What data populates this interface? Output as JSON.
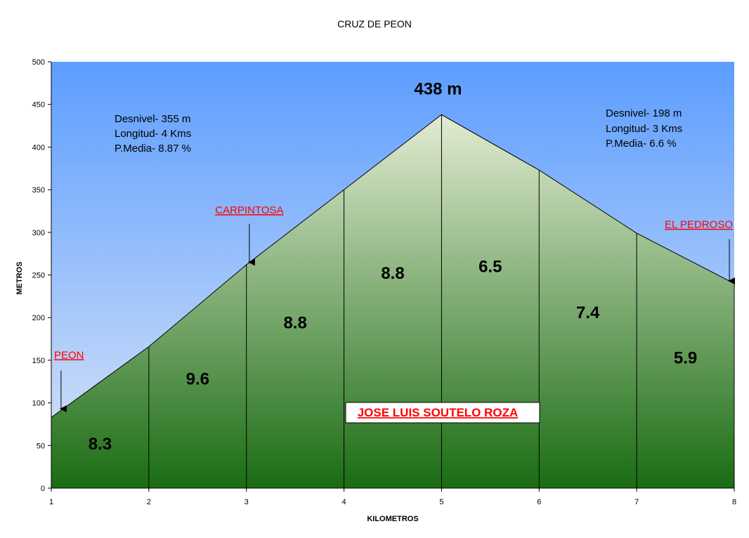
{
  "chart_data": {
    "type": "area",
    "title": "CRUZ DE PEON",
    "xlabel": "KILOMETROS",
    "ylabel": "METROS",
    "xlim": [
      1,
      8
    ],
    "ylim": [
      0,
      500
    ],
    "x_ticks": [
      1,
      2,
      3,
      4,
      5,
      6,
      7,
      8
    ],
    "y_ticks": [
      0,
      50,
      100,
      150,
      200,
      250,
      300,
      350,
      400,
      450,
      500
    ],
    "x": [
      1,
      2,
      3,
      4,
      5,
      6,
      7,
      8
    ],
    "elevation_m": [
      83,
      166,
      262,
      350,
      438,
      373,
      299,
      240
    ],
    "segment_grades": [
      "8.3",
      "9.6",
      "8.8",
      "8.8",
      "6.5",
      "7.4",
      "5.9"
    ],
    "segment_label_heights_m": [
      52,
      128,
      194,
      252,
      260,
      206,
      153
    ],
    "peak_label": "438 m",
    "places": [
      {
        "name": "PEON",
        "x": 1.1,
        "arrow_from_m": 138,
        "arrow_to_m": 93,
        "label_m": 152
      },
      {
        "name": "CARPINTOSA",
        "x": 3.03,
        "arrow_from_m": 310,
        "arrow_to_m": 265,
        "label_m": 322
      },
      {
        "name": "EL PEDROSO",
        "x": 7.95,
        "arrow_from_m": 292,
        "arrow_to_m": 243,
        "label_m": 305
      }
    ],
    "climb_stats": [
      {
        "lines": [
          "Desnivel- 355 m",
          "Longitud- 4 Kms",
          "P.Media- 8.87 %"
        ]
      },
      {
        "lines": [
          "Desnivel- 198 m",
          "Longitud- 3 Kms",
          "P.Media- 6.6 %"
        ]
      }
    ],
    "credit": "JOSE LUIS SOUTELO ROZA",
    "grid": false,
    "colors": {
      "sky_top": "#5c9dff",
      "sky_bottom": "#dde7f7",
      "fill_top": "#e3ecd3",
      "fill_bottom": "#1a6c13",
      "divider": "#000000",
      "place_label": "#ff0000"
    }
  }
}
